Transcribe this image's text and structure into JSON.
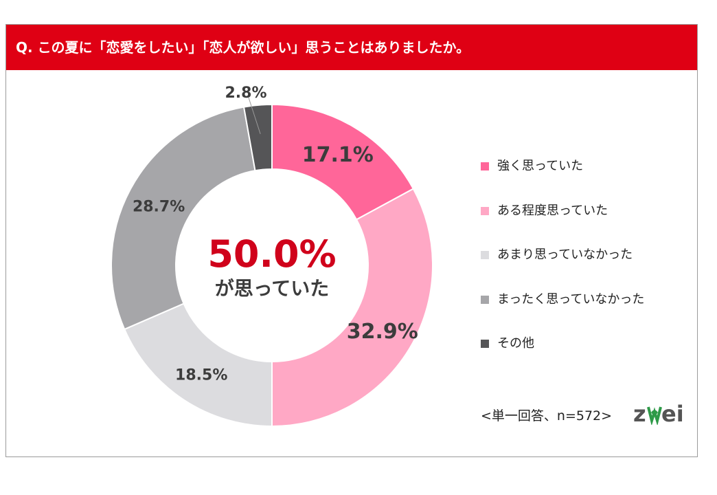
{
  "title": "Q. この夏に「恋愛をしたい」「恋人が欲しい」思うことはありましたか。",
  "footnote": "<単一回答、n=572>",
  "logo": "zwei",
  "center": {
    "value": "50.0%",
    "caption": "が思っていた"
  },
  "colors": {
    "title_bg": "#df0014",
    "center_value": "#d0021b"
  },
  "chart_data": {
    "type": "pie",
    "donut": true,
    "start": "top",
    "direction": "clockwise",
    "categories": [
      "強く思っていた",
      "ある程度思っていた",
      "あまり思っていなかった",
      "まったく思っていなかった",
      "その他"
    ],
    "values": [
      17.1,
      32.9,
      18.5,
      28.7,
      2.8
    ],
    "labels": [
      "17.1%",
      "32.9%",
      "18.5%",
      "28.7%",
      "2.8%"
    ],
    "colors": [
      "#ff6699",
      "#ffa8c5",
      "#dcdcdf",
      "#a6a6a9",
      "#555557"
    ],
    "legend_position": "right"
  }
}
